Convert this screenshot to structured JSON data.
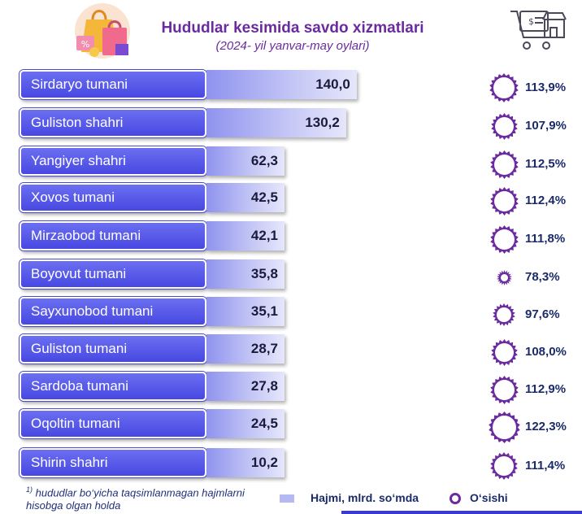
{
  "title": "Hududlar kesimida savdo xizmatlari",
  "subtitle": "(2024- yil yanvar-may oylari)",
  "icons": {
    "header_left": "shopping-bags-icon",
    "header_right": "shop-cart-icon"
  },
  "footnote": {
    "marker": "1)",
    "text": "hududlar  bo‘yicha taqsimlanmagan hajmlarni hisobga olgan holda"
  },
  "legend": {
    "volume_label": "Hajmi, mlrd. so‘mda",
    "growth_label": "O‘sishi"
  },
  "colors": {
    "label_fill": "#5252e6",
    "bar_fill": "#b6b8f2",
    "growth_marker": "#6a2aa0",
    "title": "#6a2aa0"
  },
  "chart_data": {
    "type": "bar",
    "orientation": "horizontal",
    "categories": [
      "Sirdaryo tumani",
      "Guliston shahri",
      "Yangiyer shahri",
      "Xovos tumani",
      "Mirzaobod tumani",
      "Boyovut tumani",
      "Sayxunobod tumani",
      "Guliston tumani",
      "Sardoba tumani",
      "Oqoltin tumani",
      "Shirin shahri"
    ],
    "series": [
      {
        "name": "Hajmi, mlrd. so‘mda",
        "values": [
          140.0,
          130.2,
          62.3,
          42.5,
          42.1,
          35.8,
          35.1,
          28.7,
          27.8,
          24.5,
          10.2
        ],
        "labels": [
          "140,0",
          "130,2",
          "62,3",
          "42,5",
          "42,1",
          "35,8",
          "35,1",
          "28,7",
          "27,8",
          "24,5",
          "10,2"
        ]
      },
      {
        "name": "O‘sishi",
        "values": [
          113.9,
          107.9,
          112.5,
          112.4,
          111.8,
          78.3,
          97.6,
          108.0,
          112.9,
          122.3,
          111.4
        ],
        "labels": [
          "113,9%",
          "107,9%",
          "112,5%",
          "112,4%",
          "111,8%",
          "78,3%",
          "97,6%",
          "108,0%",
          "112,9%",
          "122,3%",
          "111,4%"
        ]
      }
    ],
    "annotations": [
      "1)"
    ],
    "legend": "bottom"
  }
}
